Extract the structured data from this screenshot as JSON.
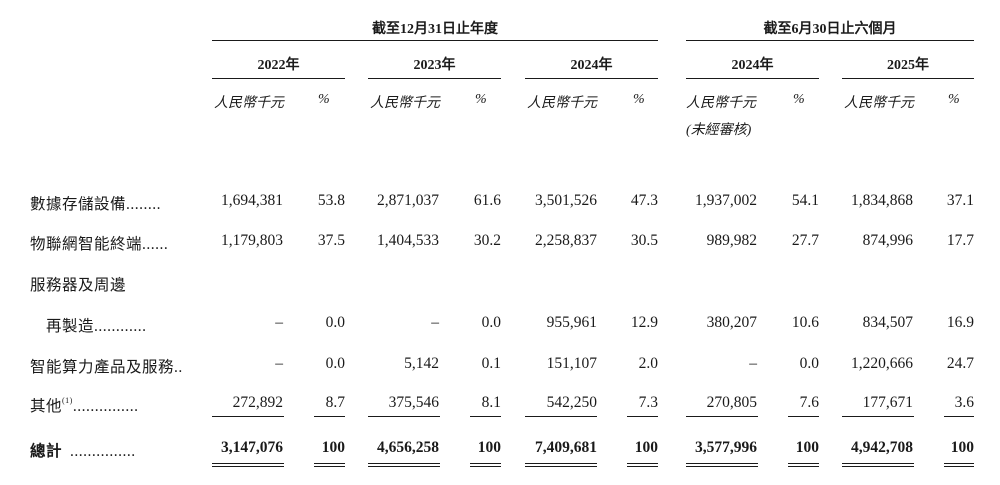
{
  "header": {
    "group1": "截至12月31日止年度",
    "group2": "截至6月30日止六個月",
    "years": [
      "2022年",
      "2023年",
      "2024年",
      "2024年",
      "2025年"
    ],
    "unit_amount": "人民幣千元",
    "unit_pct": "%",
    "unaudited": "(未經審核)"
  },
  "rows": [
    {
      "label": "數據存儲設備",
      "dots": "........",
      "values": [
        "1,694,381",
        "53.8",
        "2,871,037",
        "61.6",
        "3,501,526",
        "47.3",
        "1,937,002",
        "54.1",
        "1,834,868",
        "37.1"
      ]
    },
    {
      "label": "物聯網智能終端",
      "dots": "......",
      "values": [
        "1,179,803",
        "37.5",
        "1,404,533",
        "30.2",
        "2,258,837",
        "30.5",
        "989,982",
        "27.7",
        "874,996",
        "17.7"
      ]
    },
    {
      "label": "服務器及周邊",
      "label2": "再製造",
      "dots": "............",
      "values": [
        "–",
        "0.0",
        "–",
        "0.0",
        "955,961",
        "12.9",
        "380,207",
        "10.6",
        "834,507",
        "16.9"
      ]
    },
    {
      "label": "智能算力產品及服務",
      "dots": "..",
      "values": [
        "–",
        "0.0",
        "5,142",
        "0.1",
        "151,107",
        "2.0",
        "–",
        "0.0",
        "1,220,666",
        "24.7"
      ]
    },
    {
      "label": "其他",
      "note": "(1)",
      "dots": "...............",
      "values": [
        "272,892",
        "8.7",
        "375,546",
        "8.1",
        "542,250",
        "7.3",
        "270,805",
        "7.6",
        "177,671",
        "3.6"
      ]
    }
  ],
  "total": {
    "label": "總計",
    "dots": "...............",
    "values": [
      "3,147,076",
      "100",
      "4,656,258",
      "100",
      "7,409,681",
      "100",
      "3,577,996",
      "100",
      "4,942,708",
      "100"
    ]
  }
}
